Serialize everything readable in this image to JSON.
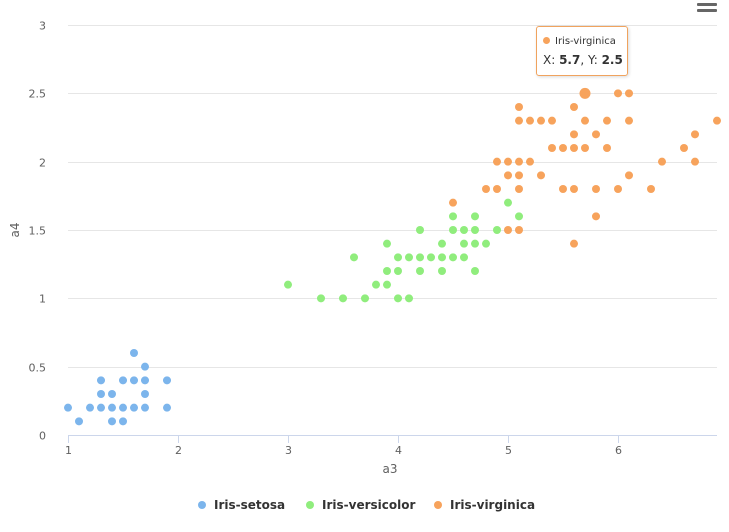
{
  "chart_data": {
    "type": "scatter",
    "title": "",
    "xlabel": "a3",
    "ylabel": "a4",
    "xlim": [
      1,
      6.9
    ],
    "ylim": [
      0,
      3
    ],
    "x_ticks": [
      1,
      2,
      3,
      4,
      5,
      6
    ],
    "y_ticks": [
      0,
      0.5,
      1,
      1.5,
      2,
      2.5,
      3
    ],
    "grid": "horizontal",
    "legend_position": "bottom-center",
    "series": [
      {
        "name": "Iris-setosa",
        "color": "#7cb5ec",
        "points": [
          [
            1.0,
            0.2
          ],
          [
            1.1,
            0.1
          ],
          [
            1.2,
            0.2
          ],
          [
            1.3,
            0.2
          ],
          [
            1.3,
            0.3
          ],
          [
            1.3,
            0.4
          ],
          [
            1.4,
            0.1
          ],
          [
            1.4,
            0.2
          ],
          [
            1.4,
            0.3
          ],
          [
            1.5,
            0.1
          ],
          [
            1.5,
            0.2
          ],
          [
            1.5,
            0.4
          ],
          [
            1.6,
            0.2
          ],
          [
            1.6,
            0.4
          ],
          [
            1.6,
            0.6
          ],
          [
            1.7,
            0.2
          ],
          [
            1.7,
            0.3
          ],
          [
            1.7,
            0.4
          ],
          [
            1.7,
            0.5
          ],
          [
            1.9,
            0.2
          ],
          [
            1.9,
            0.4
          ]
        ]
      },
      {
        "name": "Iris-versicolor",
        "color": "#90ed7d",
        "points": [
          [
            3.0,
            1.1
          ],
          [
            3.3,
            1.0
          ],
          [
            3.5,
            1.0
          ],
          [
            3.6,
            1.3
          ],
          [
            3.7,
            1.0
          ],
          [
            3.8,
            1.1
          ],
          [
            3.9,
            1.1
          ],
          [
            3.9,
            1.2
          ],
          [
            3.9,
            1.4
          ],
          [
            4.0,
            1.0
          ],
          [
            4.0,
            1.2
          ],
          [
            4.0,
            1.3
          ],
          [
            4.1,
            1.0
          ],
          [
            4.1,
            1.3
          ],
          [
            4.2,
            1.2
          ],
          [
            4.2,
            1.3
          ],
          [
            4.2,
            1.5
          ],
          [
            4.3,
            1.3
          ],
          [
            4.4,
            1.2
          ],
          [
            4.4,
            1.3
          ],
          [
            4.4,
            1.4
          ],
          [
            4.5,
            1.3
          ],
          [
            4.5,
            1.5
          ],
          [
            4.5,
            1.6
          ],
          [
            4.6,
            1.3
          ],
          [
            4.6,
            1.4
          ],
          [
            4.6,
            1.5
          ],
          [
            4.7,
            1.2
          ],
          [
            4.7,
            1.4
          ],
          [
            4.7,
            1.5
          ],
          [
            4.7,
            1.6
          ],
          [
            4.8,
            1.4
          ],
          [
            4.9,
            1.5
          ],
          [
            5.0,
            1.7
          ],
          [
            5.1,
            1.6
          ]
        ]
      },
      {
        "name": "Iris-virginica",
        "color": "#f7a35c",
        "points": [
          [
            4.5,
            1.7
          ],
          [
            4.8,
            1.8
          ],
          [
            4.9,
            1.8
          ],
          [
            4.9,
            2.0
          ],
          [
            5.0,
            1.5
          ],
          [
            5.0,
            1.9
          ],
          [
            5.0,
            2.0
          ],
          [
            5.1,
            1.5
          ],
          [
            5.1,
            1.8
          ],
          [
            5.1,
            1.9
          ],
          [
            5.1,
            2.0
          ],
          [
            5.1,
            2.3
          ],
          [
            5.1,
            2.4
          ],
          [
            5.2,
            2.0
          ],
          [
            5.2,
            2.3
          ],
          [
            5.3,
            1.9
          ],
          [
            5.3,
            2.3
          ],
          [
            5.4,
            2.1
          ],
          [
            5.4,
            2.3
          ],
          [
            5.5,
            1.8
          ],
          [
            5.5,
            2.1
          ],
          [
            5.6,
            1.4
          ],
          [
            5.6,
            1.8
          ],
          [
            5.6,
            2.1
          ],
          [
            5.6,
            2.2
          ],
          [
            5.6,
            2.4
          ],
          [
            5.7,
            2.1
          ],
          [
            5.7,
            2.3
          ],
          [
            5.7,
            2.5
          ],
          [
            5.8,
            1.6
          ],
          [
            5.8,
            1.8
          ],
          [
            5.8,
            2.2
          ],
          [
            5.9,
            2.1
          ],
          [
            5.9,
            2.3
          ],
          [
            6.0,
            1.8
          ],
          [
            6.0,
            2.5
          ],
          [
            6.1,
            1.9
          ],
          [
            6.1,
            2.3
          ],
          [
            6.1,
            2.5
          ],
          [
            6.3,
            1.8
          ],
          [
            6.4,
            2.0
          ],
          [
            6.6,
            2.1
          ],
          [
            6.7,
            2.0
          ],
          [
            6.7,
            2.2
          ],
          [
            6.9,
            2.3
          ]
        ]
      }
    ]
  },
  "tooltip": {
    "series_name": "Iris-virginica",
    "x_label": "X: ",
    "x_value": "5.7",
    "separator": ", Y: ",
    "y_value": "2.5",
    "highlight_point": [
      5.7,
      2.5
    ]
  },
  "menu": {
    "icon": "hamburger-menu-icon"
  }
}
